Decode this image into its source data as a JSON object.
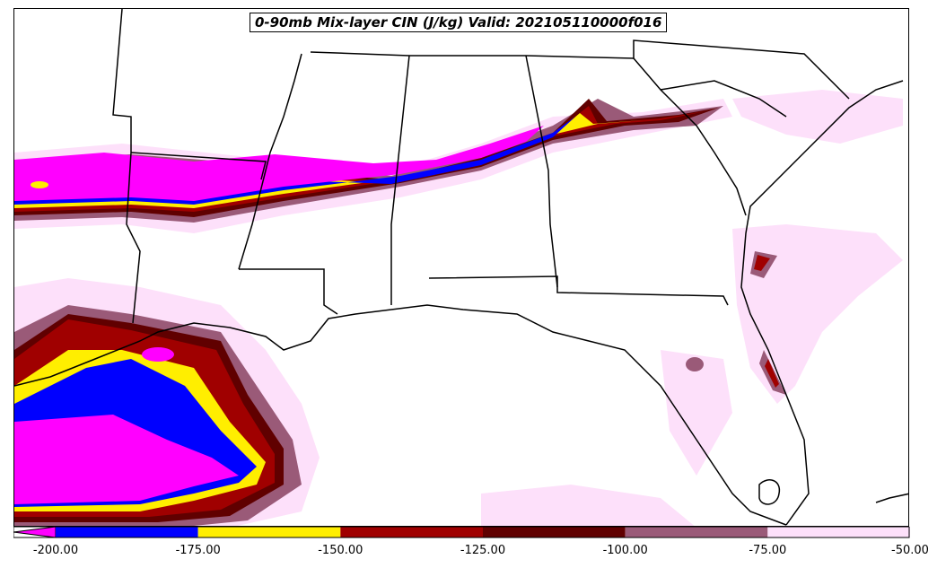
{
  "title": "0-90mb Mix-layer CIN (J/kg) Valid: 202105110000f016",
  "colorbar": {
    "extend": "min",
    "ticks": [
      "-200.00",
      "-175.00",
      "-150.00",
      "-125.00",
      "-100.00",
      "-75.00",
      "-50.00"
    ],
    "bins": [
      {
        "from": -200,
        "to": -175,
        "color": "#0000ff"
      },
      {
        "from": -175,
        "to": -150,
        "color": "#ffee00"
      },
      {
        "from": -150,
        "to": -125,
        "color": "#a00000"
      },
      {
        "from": -125,
        "to": -100,
        "color": "#600000"
      },
      {
        "from": -100,
        "to": -75,
        "color": "#9a5a78"
      },
      {
        "from": -75,
        "to": -50,
        "color": "#fde0fa"
      }
    ],
    "under_color": "#ff00ff"
  },
  "map_colors": {
    "ocean": "#ffffff",
    "land": "#ffffff",
    "boundaries": "#000000"
  }
}
